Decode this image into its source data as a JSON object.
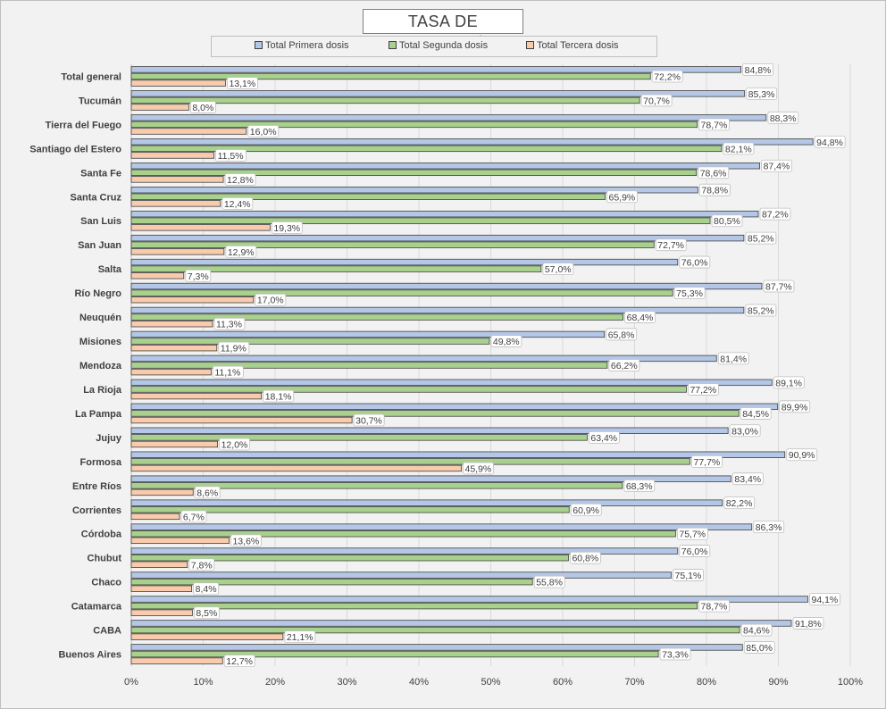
{
  "chart_data": {
    "type": "bar",
    "orientation": "horizontal",
    "title": "TASA DE VACUNACIÓN",
    "categories": [
      "Total general",
      "Tucumán",
      "Tierra del Fuego",
      "Santiago del Estero",
      "Santa Fe",
      "Santa Cruz",
      "San Luis",
      "San Juan",
      "Salta",
      "Río Negro",
      "Neuquén",
      "Misiones",
      "Mendoza",
      "La Rioja",
      "La Pampa",
      "Jujuy",
      "Formosa",
      "Entre Ríos",
      "Corrientes",
      "Córdoba",
      "Chubut",
      "Chaco",
      "Catamarca",
      "CABA",
      "Buenos Aires"
    ],
    "series": [
      {
        "name": "Total Primera dosis",
        "color": "#b4c7e7",
        "values": [
          84.8,
          85.3,
          88.3,
          94.8,
          87.4,
          78.8,
          87.2,
          85.2,
          76.0,
          87.7,
          85.2,
          65.8,
          81.4,
          89.1,
          89.9,
          83.0,
          90.9,
          83.4,
          82.2,
          86.3,
          76.0,
          75.1,
          94.1,
          91.8,
          85.0
        ]
      },
      {
        "name": "Total Segunda dosis",
        "color": "#a9d18e",
        "values": [
          72.2,
          70.7,
          78.7,
          82.1,
          78.6,
          65.9,
          80.5,
          72.7,
          57.0,
          75.3,
          68.4,
          49.8,
          66.2,
          77.2,
          84.5,
          63.4,
          77.7,
          68.3,
          60.9,
          75.7,
          60.8,
          55.8,
          78.7,
          84.6,
          73.3
        ]
      },
      {
        "name": "Total Tercera dosis",
        "color": "#f8cbad",
        "values": [
          13.1,
          8.0,
          16.0,
          11.5,
          12.8,
          12.4,
          19.3,
          12.9,
          7.3,
          17.0,
          11.3,
          11.9,
          11.1,
          18.1,
          30.7,
          12.0,
          45.9,
          8.6,
          6.7,
          13.6,
          7.8,
          8.4,
          8.5,
          21.1,
          12.7
        ]
      }
    ],
    "xlim": [
      0,
      100
    ],
    "xticks": [
      "0%",
      "10%",
      "20%",
      "30%",
      "40%",
      "50%",
      "60%",
      "70%",
      "80%",
      "90%",
      "100%"
    ],
    "grid": true,
    "legend_position": "top",
    "data_labels": true
  }
}
